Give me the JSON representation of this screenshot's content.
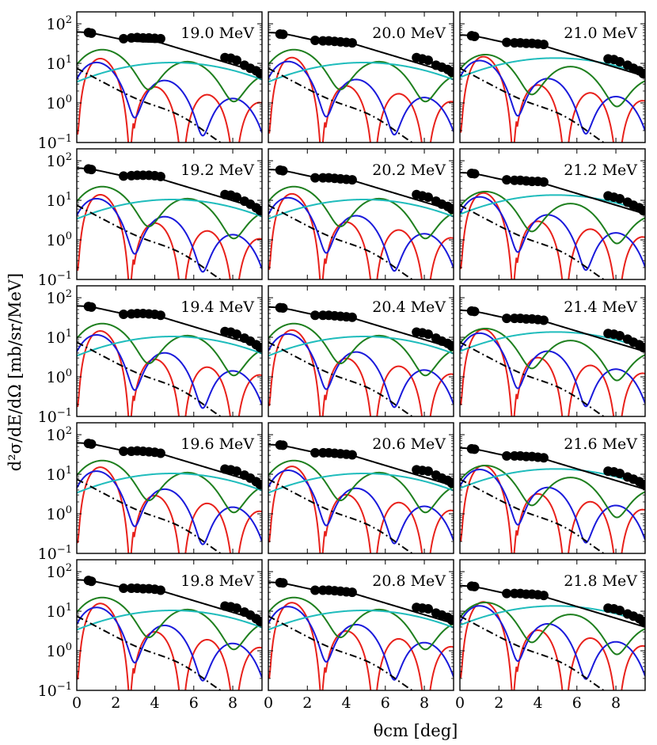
{
  "chart_data": {
    "type": "line",
    "layout": "5 rows x 3 columns of small-multiple log-scale panels",
    "xlabel": "θcm [deg]",
    "ylabel": "d²σ/dE/dΩ [mb/sr/MeV]",
    "xlim": [
      0,
      9.5
    ],
    "ylim": [
      0.1,
      200
    ],
    "yscale": "log",
    "x_ticks": [
      "0",
      "2",
      "4",
      "6",
      "8"
    ],
    "x_tick_values": [
      0,
      2,
      4,
      6,
      8
    ],
    "y_ticks": [
      {
        "value": 100,
        "base": "10",
        "exp": "2"
      },
      {
        "value": 10,
        "base": "10",
        "exp": "1"
      },
      {
        "value": 1,
        "base": "10",
        "exp": "0"
      },
      {
        "value": 0.1,
        "base": "10",
        "exp": "−1"
      }
    ],
    "series_colors": {
      "total": "#000000",
      "L0": "#e8211b",
      "L1": "#1a1adb",
      "L2": "#1e7f1e",
      "L3": "#1fbcbc",
      "dashdot": "#000000"
    },
    "panels": [
      {
        "label": "19.0 MeV",
        "row": 0,
        "col": 0,
        "total0": 62,
        "data": [
          [
            0.6,
            60
          ],
          [
            0.75,
            58
          ],
          [
            2.4,
            42
          ],
          [
            2.8,
            44
          ],
          [
            3.1,
            45
          ],
          [
            3.4,
            44
          ],
          [
            3.7,
            44
          ],
          [
            4.0,
            43
          ],
          [
            4.3,
            42
          ],
          [
            7.6,
            14
          ],
          [
            7.9,
            13.5
          ],
          [
            8.2,
            12
          ],
          [
            8.6,
            9
          ],
          [
            8.9,
            7.5
          ],
          [
            9.2,
            6.5
          ],
          [
            9.4,
            5.5
          ]
        ]
      },
      {
        "label": "20.0 MeV",
        "row": 0,
        "col": 1,
        "total0": 60,
        "data": [
          [
            0.6,
            55
          ],
          [
            0.75,
            54
          ],
          [
            2.4,
            38
          ],
          [
            2.8,
            37
          ],
          [
            3.1,
            37
          ],
          [
            3.4,
            36
          ],
          [
            3.7,
            35
          ],
          [
            4.0,
            34
          ],
          [
            4.3,
            33
          ],
          [
            7.6,
            14
          ],
          [
            7.9,
            13
          ],
          [
            8.2,
            12
          ],
          [
            8.6,
            9
          ],
          [
            8.9,
            8
          ],
          [
            9.2,
            7
          ],
          [
            9.4,
            6
          ]
        ]
      },
      {
        "label": "21.0 MeV",
        "row": 0,
        "col": 2,
        "total0": 52,
        "data": [
          [
            0.6,
            50
          ],
          [
            0.75,
            48
          ],
          [
            2.4,
            34
          ],
          [
            2.8,
            33
          ],
          [
            3.1,
            33
          ],
          [
            3.4,
            32
          ],
          [
            3.7,
            32
          ],
          [
            4.0,
            31
          ],
          [
            4.3,
            30
          ],
          [
            7.6,
            13
          ],
          [
            7.9,
            12.5
          ],
          [
            8.2,
            11
          ],
          [
            8.6,
            9
          ],
          [
            8.9,
            7.5
          ],
          [
            9.2,
            6.5
          ],
          [
            9.4,
            5.5
          ]
        ]
      },
      {
        "label": "19.2 MeV",
        "row": 1,
        "col": 0,
        "total0": 65,
        "data": [
          [
            0.6,
            62
          ],
          [
            0.75,
            60
          ],
          [
            2.4,
            41
          ],
          [
            2.8,
            42
          ],
          [
            3.1,
            43
          ],
          [
            3.4,
            43
          ],
          [
            3.7,
            43
          ],
          [
            4.0,
            42
          ],
          [
            4.3,
            40
          ],
          [
            7.6,
            14
          ],
          [
            7.9,
            13.5
          ],
          [
            8.2,
            12
          ],
          [
            8.6,
            9.5
          ],
          [
            8.9,
            8
          ],
          [
            9.2,
            6.5
          ],
          [
            9.4,
            5.5
          ]
        ]
      },
      {
        "label": "20.2 MeV",
        "row": 1,
        "col": 1,
        "total0": 60,
        "data": [
          [
            0.6,
            58
          ],
          [
            0.75,
            56
          ],
          [
            2.4,
            37
          ],
          [
            2.8,
            37
          ],
          [
            3.1,
            37
          ],
          [
            3.4,
            36
          ],
          [
            3.7,
            35
          ],
          [
            4.0,
            34
          ],
          [
            4.3,
            33
          ],
          [
            7.6,
            14
          ],
          [
            7.9,
            13
          ],
          [
            8.2,
            12
          ],
          [
            8.6,
            9.5
          ],
          [
            8.9,
            8
          ],
          [
            9.2,
            7
          ],
          [
            9.4,
            6
          ]
        ]
      },
      {
        "label": "21.2 MeV",
        "row": 1,
        "col": 2,
        "total0": 50,
        "data": [
          [
            0.6,
            48
          ],
          [
            0.75,
            47
          ],
          [
            2.4,
            33
          ],
          [
            2.8,
            32
          ],
          [
            3.1,
            32
          ],
          [
            3.4,
            31
          ],
          [
            3.7,
            30
          ],
          [
            4.0,
            30
          ],
          [
            4.3,
            29
          ],
          [
            7.6,
            13
          ],
          [
            7.9,
            12
          ],
          [
            8.2,
            11
          ],
          [
            8.6,
            9
          ],
          [
            8.9,
            7.5
          ],
          [
            9.2,
            6.5
          ],
          [
            9.4,
            5.5
          ]
        ]
      },
      {
        "label": "19.4 MeV",
        "row": 2,
        "col": 0,
        "total0": 62,
        "data": [
          [
            0.6,
            60
          ],
          [
            0.75,
            58
          ],
          [
            2.4,
            38
          ],
          [
            2.8,
            39
          ],
          [
            3.1,
            40
          ],
          [
            3.4,
            40
          ],
          [
            3.7,
            39
          ],
          [
            4.0,
            38
          ],
          [
            4.3,
            36
          ],
          [
            7.6,
            14
          ],
          [
            7.9,
            13.5
          ],
          [
            8.2,
            12
          ],
          [
            8.6,
            9.5
          ],
          [
            8.9,
            8
          ],
          [
            9.2,
            6.5
          ],
          [
            9.4,
            5.5
          ]
        ]
      },
      {
        "label": "20.4 MeV",
        "row": 2,
        "col": 1,
        "total0": 58,
        "data": [
          [
            0.6,
            56
          ],
          [
            0.75,
            55
          ],
          [
            2.4,
            36
          ],
          [
            2.8,
            36
          ],
          [
            3.1,
            36
          ],
          [
            3.4,
            35
          ],
          [
            3.7,
            34
          ],
          [
            4.0,
            33
          ],
          [
            4.3,
            32
          ],
          [
            7.6,
            13.5
          ],
          [
            7.9,
            13
          ],
          [
            8.2,
            12
          ],
          [
            8.6,
            9.5
          ],
          [
            8.9,
            8
          ],
          [
            9.2,
            7
          ],
          [
            9.4,
            6
          ]
        ]
      },
      {
        "label": "21.4 MeV",
        "row": 2,
        "col": 2,
        "total0": 48,
        "data": [
          [
            0.6,
            46
          ],
          [
            0.75,
            45
          ],
          [
            2.4,
            30
          ],
          [
            2.8,
            30
          ],
          [
            3.1,
            30
          ],
          [
            3.4,
            29
          ],
          [
            3.7,
            29
          ],
          [
            4.0,
            28
          ],
          [
            4.3,
            27
          ],
          [
            7.6,
            12.5
          ],
          [
            7.9,
            12
          ],
          [
            8.2,
            11
          ],
          [
            8.6,
            9
          ],
          [
            8.9,
            7.5
          ],
          [
            9.2,
            6.5
          ],
          [
            9.4,
            5.5
          ]
        ]
      },
      {
        "label": "19.6 MeV",
        "row": 3,
        "col": 0,
        "total0": 62,
        "data": [
          [
            0.6,
            60
          ],
          [
            0.75,
            58
          ],
          [
            2.4,
            38
          ],
          [
            2.8,
            38
          ],
          [
            3.1,
            39
          ],
          [
            3.4,
            38
          ],
          [
            3.7,
            37
          ],
          [
            4.0,
            36
          ],
          [
            4.3,
            34
          ],
          [
            7.6,
            13.5
          ],
          [
            7.9,
            13
          ],
          [
            8.2,
            12
          ],
          [
            8.6,
            9.5
          ],
          [
            8.9,
            8
          ],
          [
            9.2,
            6.5
          ],
          [
            9.4,
            5.5
          ]
        ]
      },
      {
        "label": "20.6 MeV",
        "row": 3,
        "col": 1,
        "total0": 56,
        "data": [
          [
            0.6,
            55
          ],
          [
            0.75,
            54
          ],
          [
            2.4,
            35
          ],
          [
            2.8,
            35
          ],
          [
            3.1,
            35
          ],
          [
            3.4,
            34
          ],
          [
            3.7,
            33
          ],
          [
            4.0,
            32
          ],
          [
            4.3,
            31
          ],
          [
            7.6,
            13
          ],
          [
            7.9,
            12.5
          ],
          [
            8.2,
            12
          ],
          [
            8.6,
            9.5
          ],
          [
            8.9,
            8
          ],
          [
            9.2,
            7
          ],
          [
            9.4,
            6
          ]
        ]
      },
      {
        "label": "21.6 MeV",
        "row": 3,
        "col": 2,
        "total0": 46,
        "data": [
          [
            0.6,
            44
          ],
          [
            0.75,
            43
          ],
          [
            2.4,
            29
          ],
          [
            2.8,
            29
          ],
          [
            3.1,
            29
          ],
          [
            3.4,
            28
          ],
          [
            3.7,
            28
          ],
          [
            4.0,
            27
          ],
          [
            4.3,
            26
          ],
          [
            7.6,
            12
          ],
          [
            7.9,
            11.5
          ],
          [
            8.2,
            10.5
          ],
          [
            8.6,
            8.5
          ],
          [
            8.9,
            7.5
          ],
          [
            9.2,
            6.5
          ],
          [
            9.4,
            5.5
          ]
        ]
      },
      {
        "label": "19.8 MeV",
        "row": 4,
        "col": 0,
        "total0": 62,
        "data": [
          [
            0.6,
            60
          ],
          [
            0.75,
            57
          ],
          [
            2.4,
            38
          ],
          [
            2.8,
            38
          ],
          [
            3.1,
            38
          ],
          [
            3.4,
            37
          ],
          [
            3.7,
            37
          ],
          [
            4.0,
            36
          ],
          [
            4.3,
            34
          ],
          [
            7.6,
            13.5
          ],
          [
            7.9,
            13
          ],
          [
            8.2,
            12
          ],
          [
            8.6,
            9.5
          ],
          [
            8.9,
            8
          ],
          [
            9.2,
            6.5
          ],
          [
            9.4,
            5.5
          ]
        ]
      },
      {
        "label": "20.8 MeV",
        "row": 4,
        "col": 1,
        "total0": 54,
        "data": [
          [
            0.6,
            53
          ],
          [
            0.75,
            52
          ],
          [
            2.4,
            34
          ],
          [
            2.8,
            34
          ],
          [
            3.1,
            34
          ],
          [
            3.4,
            33
          ],
          [
            3.7,
            32
          ],
          [
            4.0,
            31
          ],
          [
            4.3,
            30
          ],
          [
            7.6,
            12.5
          ],
          [
            7.9,
            12
          ],
          [
            8.2,
            11.5
          ],
          [
            8.6,
            9
          ],
          [
            8.9,
            8
          ],
          [
            9.2,
            7
          ],
          [
            9.4,
            6
          ]
        ]
      },
      {
        "label": "21.8 MeV",
        "row": 4,
        "col": 2,
        "total0": 44,
        "data": [
          [
            0.6,
            43
          ],
          [
            0.75,
            42
          ],
          [
            2.4,
            28
          ],
          [
            2.8,
            28
          ],
          [
            3.1,
            28
          ],
          [
            3.4,
            27
          ],
          [
            3.7,
            27
          ],
          [
            4.0,
            26
          ],
          [
            4.3,
            25
          ],
          [
            7.6,
            12
          ],
          [
            7.9,
            11.5
          ],
          [
            8.2,
            10.5
          ],
          [
            8.6,
            8.5
          ],
          [
            8.9,
            7.5
          ],
          [
            9.2,
            6.5
          ],
          [
            9.4,
            5.5
          ]
        ]
      }
    ]
  }
}
